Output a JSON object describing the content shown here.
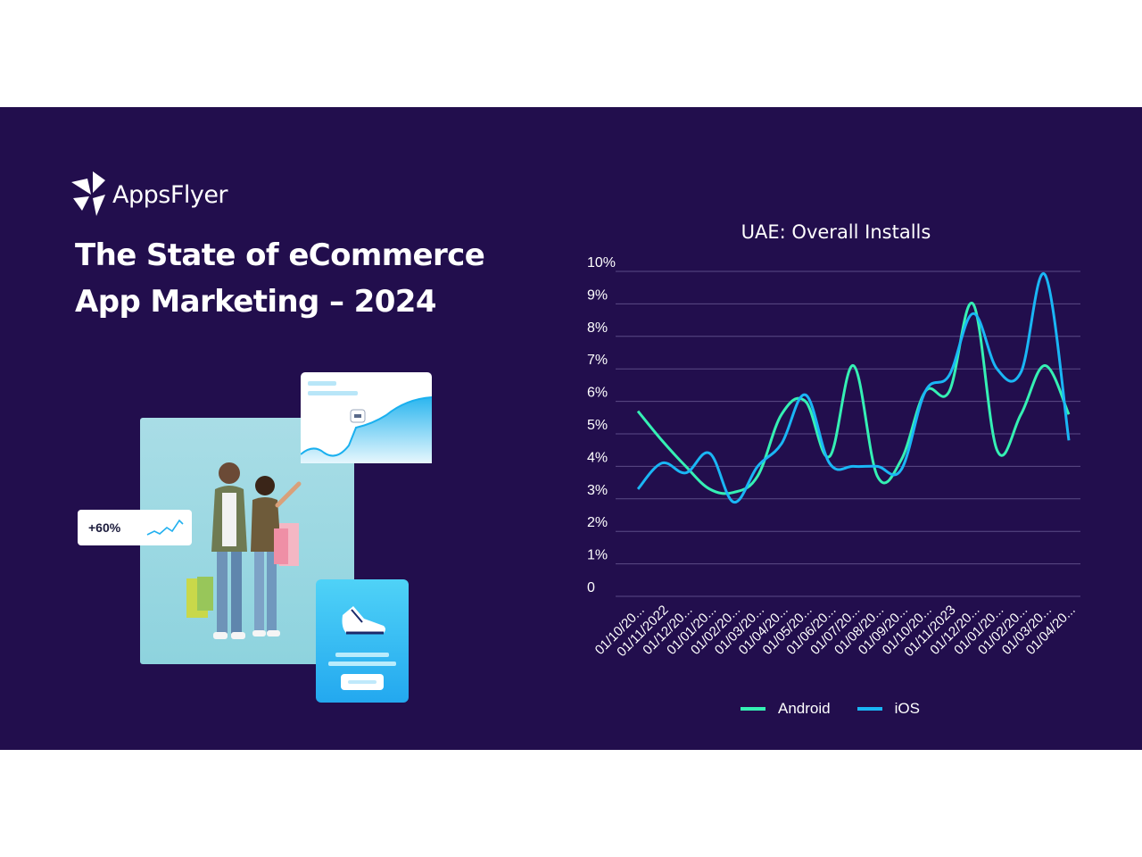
{
  "brand": {
    "name": "AppsFlyer"
  },
  "headline": {
    "line1": "The State of eCommerce",
    "line2": "App Marketing – 2024"
  },
  "illustration": {
    "stat_badge": "+60%"
  },
  "colors": {
    "background": "#220e4d",
    "android": "#35f0b4",
    "ios": "#1ab6f5",
    "grid": "#5b4b86"
  },
  "chart_data": {
    "type": "line",
    "title": "UAE: Overall Installs",
    "xlabel": "",
    "ylabel": "",
    "ylim": [
      0,
      10
    ],
    "y_ticks": [
      "0",
      "1%",
      "2%",
      "3%",
      "4%",
      "5%",
      "6%",
      "7%",
      "8%",
      "9%",
      "10%"
    ],
    "categories": [
      "01/10/20...",
      "01/11/2022",
      "01/12/20...",
      "01/01/20...",
      "01/02/20...",
      "01/03/20...",
      "01/04/20...",
      "01/05/20...",
      "01/06/20...",
      "01/07/20...",
      "01/08/20...",
      "01/09/20...",
      "01/10/20...",
      "01/11/2023",
      "01/12/20...",
      "01/01/20...",
      "01/02/20...",
      "01/03/20...",
      "01/04/20..."
    ],
    "legend_position": "bottom",
    "series": [
      {
        "name": "Android",
        "color": "#35f0b4",
        "values": [
          5.7,
          4.8,
          4.0,
          3.3,
          3.2,
          3.7,
          5.6,
          6.0,
          4.3,
          7.1,
          3.7,
          4.2,
          6.3,
          6.3,
          9.0,
          4.5,
          5.6,
          7.1,
          5.6
        ]
      },
      {
        "name": "iOS",
        "color": "#1ab6f5",
        "values": [
          3.3,
          4.1,
          3.8,
          4.4,
          2.9,
          4.0,
          4.7,
          6.2,
          4.1,
          4.0,
          4.0,
          3.9,
          6.3,
          6.8,
          8.7,
          7.0,
          6.9,
          9.9,
          4.8
        ]
      }
    ]
  }
}
